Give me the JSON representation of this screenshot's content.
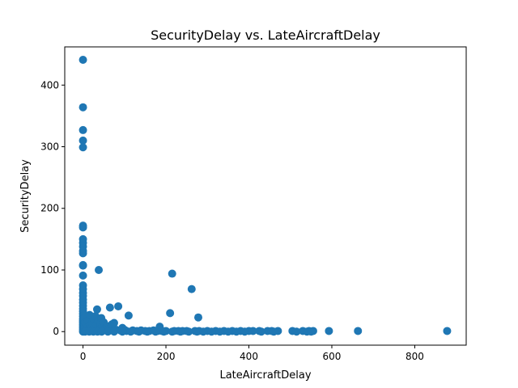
{
  "chart_data": {
    "type": "scatter",
    "title": "SecurityDelay vs. LateAircraftDelay",
    "xlabel": "LateAircraftDelay",
    "ylabel": "SecurityDelay",
    "xlim": [
      -44,
      924
    ],
    "ylim": [
      -22,
      462
    ],
    "xticks": [
      0,
      200,
      400,
      600,
      800
    ],
    "yticks": [
      0,
      100,
      200,
      300,
      400
    ],
    "grid": false,
    "marker_color": "#1f77b4",
    "points": [
      [
        0,
        441
      ],
      [
        0,
        364
      ],
      [
        0,
        327
      ],
      [
        0,
        310
      ],
      [
        0,
        299
      ],
      [
        0,
        172
      ],
      [
        0,
        169
      ],
      [
        0,
        150
      ],
      [
        0,
        144
      ],
      [
        0,
        138
      ],
      [
        0,
        131
      ],
      [
        0,
        127
      ],
      [
        0,
        108
      ],
      [
        0,
        107
      ],
      [
        0,
        91
      ],
      [
        0,
        75
      ],
      [
        0,
        69
      ],
      [
        0,
        63
      ],
      [
        0,
        58
      ],
      [
        0,
        52
      ],
      [
        0,
        47
      ],
      [
        0,
        42
      ],
      [
        0,
        37
      ],
      [
        0,
        33
      ],
      [
        0,
        29
      ],
      [
        0,
        25
      ],
      [
        0,
        21
      ],
      [
        0,
        18
      ],
      [
        0,
        15
      ],
      [
        0,
        12
      ],
      [
        0,
        9
      ],
      [
        0,
        6
      ],
      [
        0,
        3
      ],
      [
        0,
        0
      ],
      [
        2,
        12
      ],
      [
        3,
        8
      ],
      [
        4,
        22
      ],
      [
        5,
        15
      ],
      [
        6,
        4
      ],
      [
        8,
        10
      ],
      [
        10,
        6
      ],
      [
        12,
        18
      ],
      [
        14,
        3
      ],
      [
        16,
        27
      ],
      [
        18,
        9
      ],
      [
        20,
        5
      ],
      [
        22,
        14
      ],
      [
        24,
        2
      ],
      [
        26,
        20
      ],
      [
        28,
        7
      ],
      [
        30,
        25
      ],
      [
        32,
        11
      ],
      [
        34,
        36
      ],
      [
        36,
        17
      ],
      [
        38,
        100
      ],
      [
        40,
        5
      ],
      [
        42,
        13
      ],
      [
        44,
        22
      ],
      [
        46,
        8
      ],
      [
        48,
        3
      ],
      [
        50,
        15
      ],
      [
        55,
        6
      ],
      [
        58,
        9
      ],
      [
        62,
        4
      ],
      [
        65,
        39
      ],
      [
        70,
        12
      ],
      [
        75,
        14
      ],
      [
        80,
        3
      ],
      [
        85,
        41
      ],
      [
        90,
        2
      ],
      [
        95,
        6
      ],
      [
        100,
        3
      ],
      [
        105,
        1
      ],
      [
        110,
        26
      ],
      [
        120,
        2
      ],
      [
        130,
        1
      ],
      [
        140,
        2
      ],
      [
        150,
        1
      ],
      [
        160,
        1
      ],
      [
        170,
        2
      ],
      [
        180,
        1
      ],
      [
        185,
        8
      ],
      [
        190,
        1
      ],
      [
        200,
        1
      ],
      [
        210,
        30
      ],
      [
        215,
        94
      ],
      [
        220,
        1
      ],
      [
        230,
        1
      ],
      [
        240,
        1
      ],
      [
        250,
        1
      ],
      [
        262,
        69
      ],
      [
        270,
        1
      ],
      [
        278,
        23
      ],
      [
        280,
        1
      ],
      [
        300,
        1
      ],
      [
        320,
        1
      ],
      [
        340,
        1
      ],
      [
        360,
        1
      ],
      [
        380,
        1
      ],
      [
        400,
        1
      ],
      [
        410,
        1
      ],
      [
        425,
        1
      ],
      [
        445,
        1
      ],
      [
        455,
        1
      ],
      [
        470,
        1
      ],
      [
        505,
        1
      ],
      [
        530,
        1
      ],
      [
        545,
        1
      ],
      [
        555,
        1
      ],
      [
        593,
        1
      ],
      [
        663,
        1
      ],
      [
        878,
        1
      ],
      [
        5,
        0
      ],
      [
        15,
        0
      ],
      [
        25,
        0
      ],
      [
        35,
        0
      ],
      [
        45,
        0
      ],
      [
        60,
        0
      ],
      [
        75,
        0
      ],
      [
        95,
        0
      ],
      [
        115,
        0
      ],
      [
        135,
        0
      ],
      [
        155,
        0
      ],
      [
        175,
        0
      ],
      [
        195,
        0
      ],
      [
        215,
        0
      ],
      [
        235,
        0
      ],
      [
        255,
        0
      ],
      [
        275,
        0
      ],
      [
        290,
        0
      ],
      [
        310,
        0
      ],
      [
        330,
        0
      ],
      [
        350,
        0
      ],
      [
        370,
        0
      ],
      [
        390,
        0
      ],
      [
        430,
        0
      ],
      [
        460,
        0
      ],
      [
        515,
        0
      ],
      [
        540,
        0
      ],
      [
        550,
        0
      ]
    ]
  }
}
